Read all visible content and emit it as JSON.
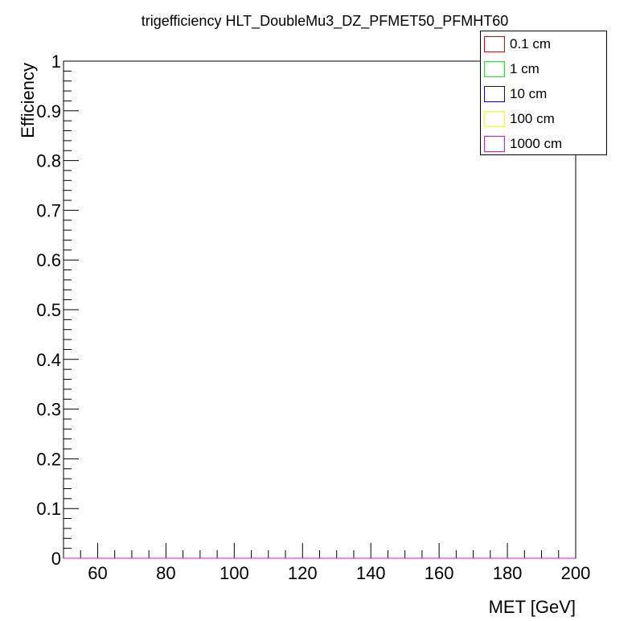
{
  "chart_data": {
    "type": "line",
    "title": "trigefficiency HLT_DoubleMu3_DZ_PFMET50_PFMHT60",
    "xlabel": "MET [GeV]",
    "ylabel": "Efficiency",
    "xlim": [
      50,
      200
    ],
    "ylim": [
      0,
      1
    ],
    "x_ticks": [
      "60",
      "80",
      "100",
      "120",
      "140",
      "160",
      "180",
      "200"
    ],
    "y_ticks": [
      "0",
      "0.1",
      "0.2",
      "0.3",
      "0.4",
      "0.5",
      "0.6",
      "0.7",
      "0.8",
      "0.9",
      "1"
    ],
    "grid": false,
    "legend_position": "top-right",
    "series": [
      {
        "name": "0.1 cm",
        "color": "#ff0000",
        "x": [
          50,
          200
        ],
        "y": [
          0,
          0
        ]
      },
      {
        "name": "1 cm",
        "color": "#00ff00",
        "x": [
          50,
          200
        ],
        "y": [
          0,
          0
        ]
      },
      {
        "name": "10 cm",
        "color": "#0000ff",
        "x": [
          50,
          200
        ],
        "y": [
          0,
          0
        ]
      },
      {
        "name": "100 cm",
        "color": "#ffff00",
        "x": [
          50,
          200
        ],
        "y": [
          0,
          0
        ]
      },
      {
        "name": "1000 cm",
        "color": "#ff00ff",
        "x": [
          50,
          200
        ],
        "y": [
          0,
          0
        ]
      }
    ]
  }
}
